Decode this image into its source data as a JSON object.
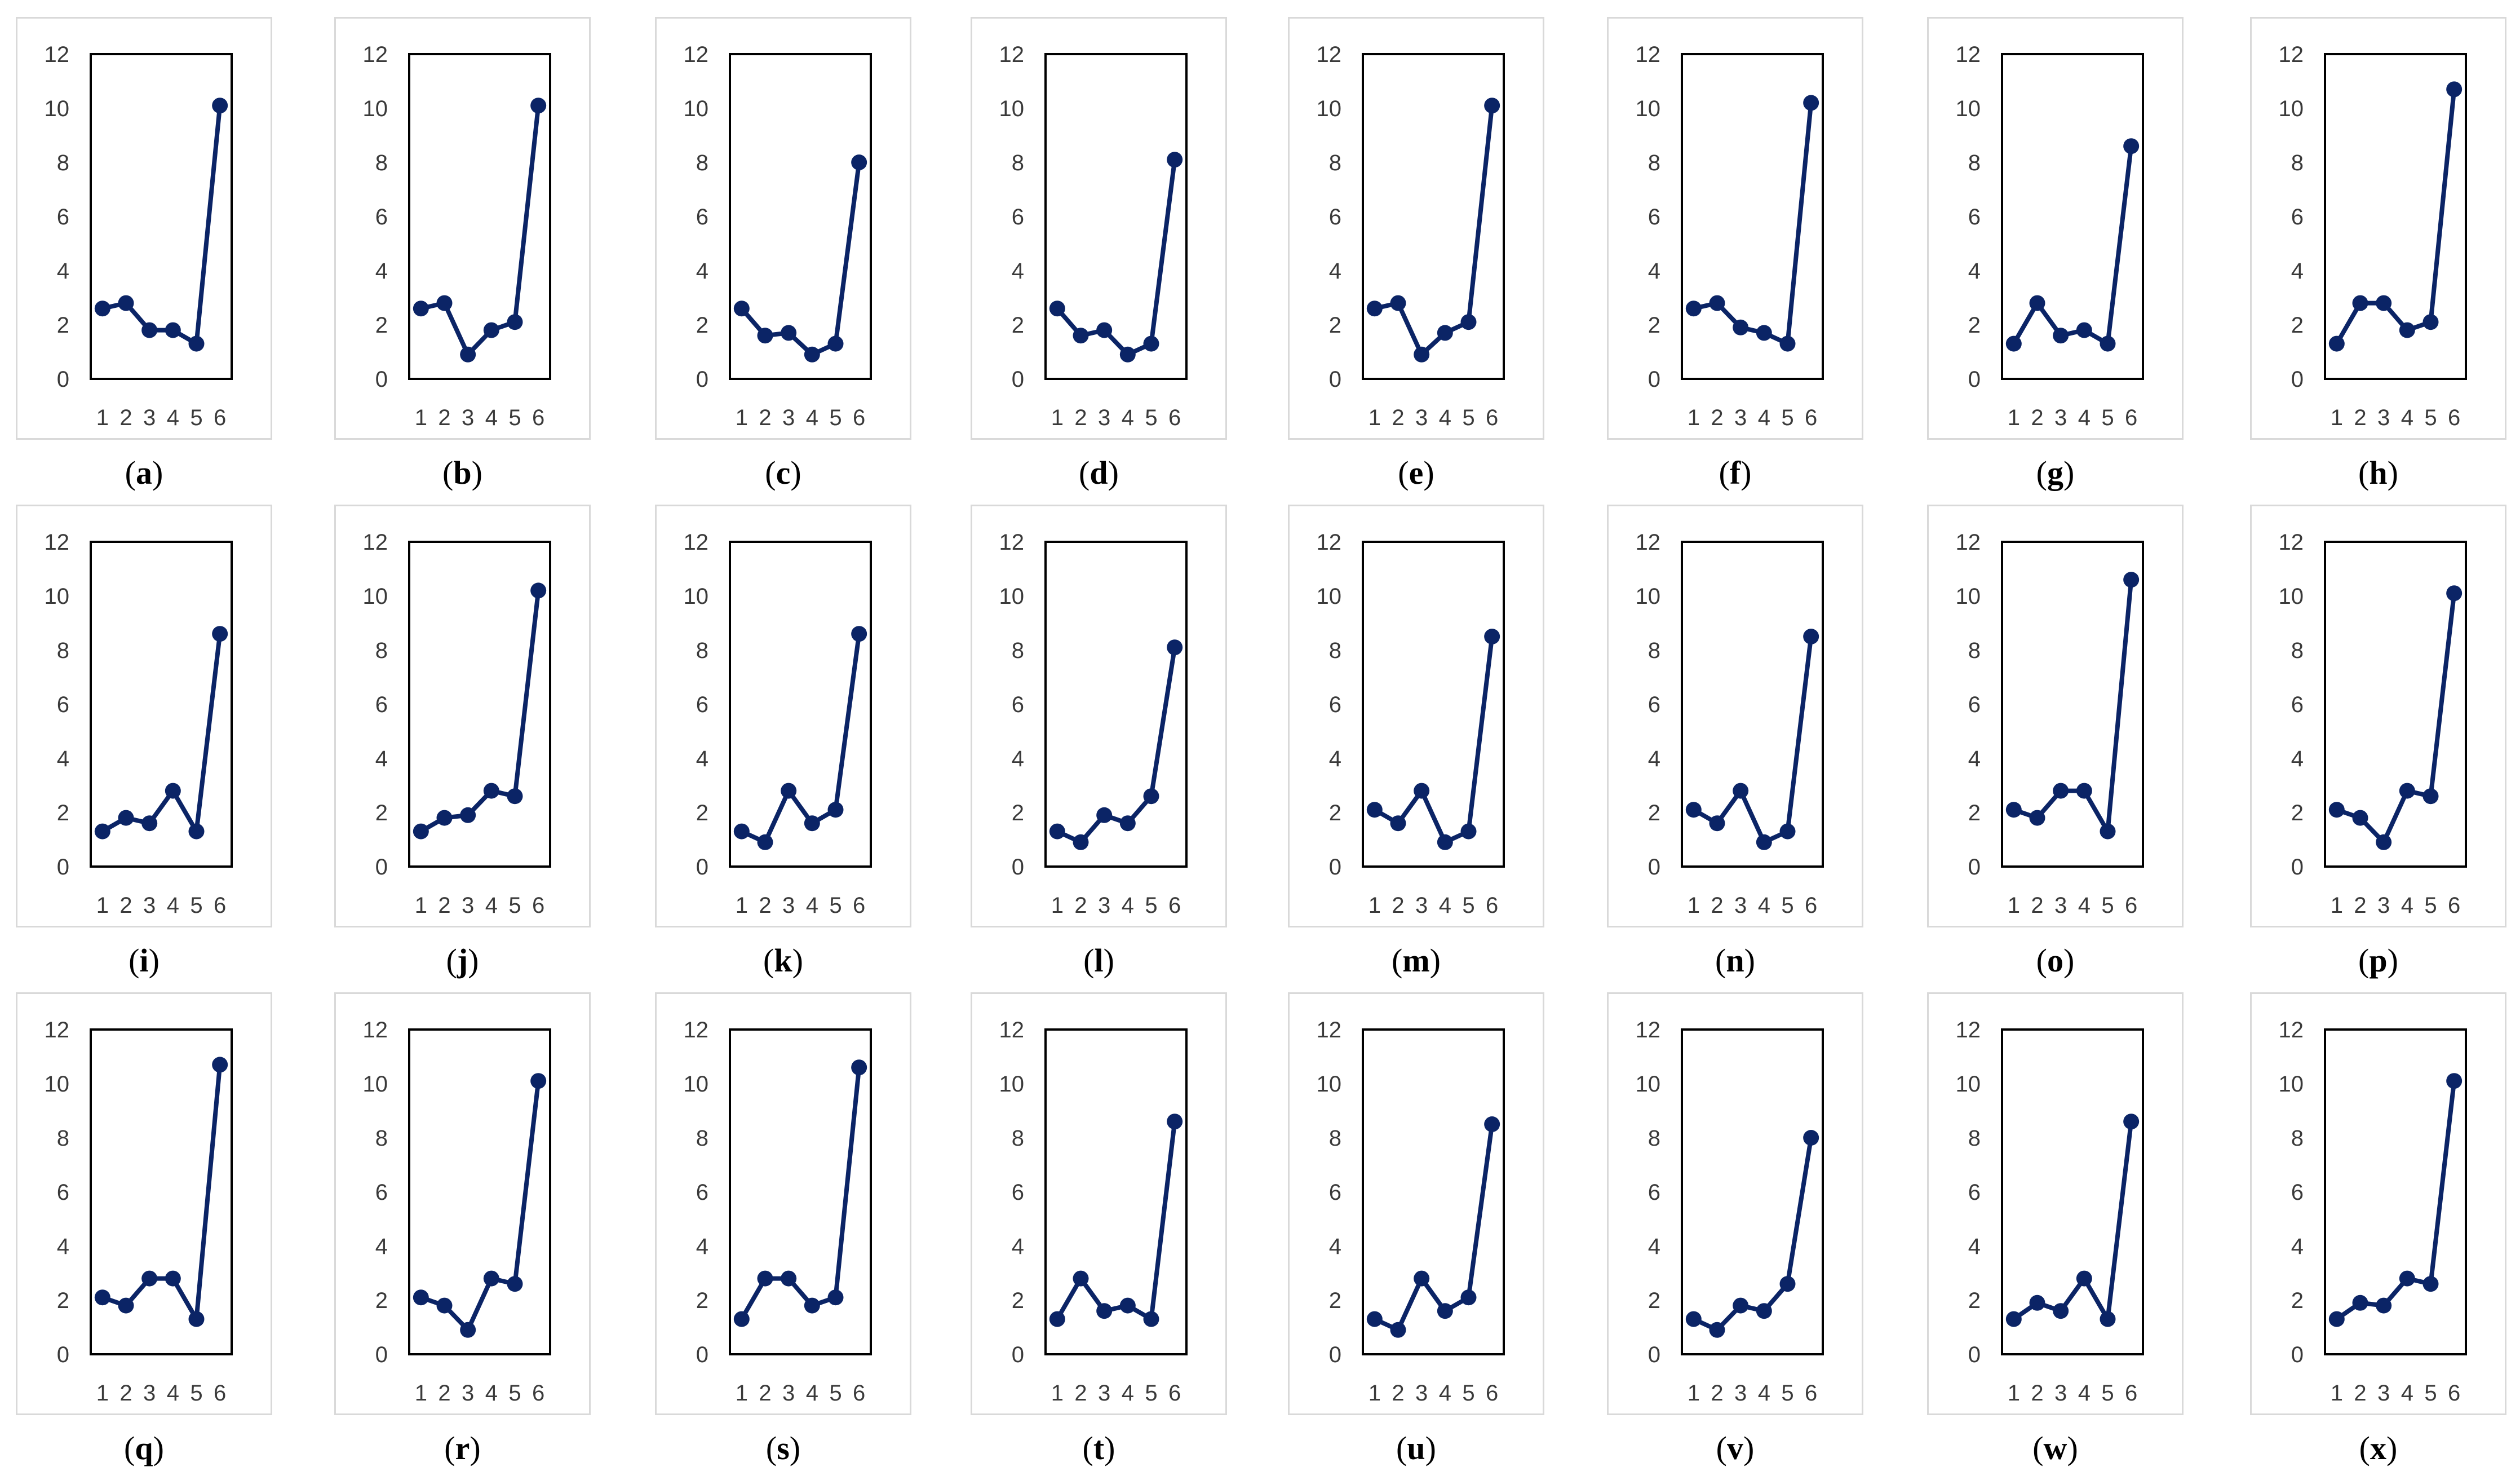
{
  "figure": {
    "style": {
      "line_color": "#0b2466",
      "frame_color": "#000000",
      "card_border": "#d9d9d9",
      "text_color": "#3a3a3a"
    }
  },
  "chart_data": [
    {
      "label": "a",
      "type": "line",
      "x": [
        1,
        2,
        3,
        4,
        5,
        6
      ],
      "values": [
        2.6,
        2.8,
        1.8,
        1.8,
        1.3,
        10.1
      ],
      "ylim": [
        0,
        12
      ],
      "yticks": [
        "0",
        "2",
        "4",
        "6",
        "8",
        "10",
        "12"
      ],
      "xticks": [
        "1",
        "2",
        "3",
        "4",
        "5",
        "6"
      ]
    },
    {
      "label": "b",
      "type": "line",
      "x": [
        1,
        2,
        3,
        4,
        5,
        6
      ],
      "values": [
        2.6,
        2.8,
        0.9,
        1.8,
        2.1,
        10.1
      ],
      "ylim": [
        0,
        12
      ],
      "yticks": [
        "0",
        "2",
        "4",
        "6",
        "8",
        "10",
        "12"
      ],
      "xticks": [
        "1",
        "2",
        "3",
        "4",
        "5",
        "6"
      ]
    },
    {
      "label": "c",
      "type": "line",
      "x": [
        1,
        2,
        3,
        4,
        5,
        6
      ],
      "values": [
        2.6,
        1.6,
        1.7,
        0.9,
        1.3,
        8.0
      ],
      "ylim": [
        0,
        12
      ],
      "yticks": [
        "0",
        "2",
        "4",
        "6",
        "8",
        "10",
        "12"
      ],
      "xticks": [
        "1",
        "2",
        "3",
        "4",
        "5",
        "6"
      ]
    },
    {
      "label": "d",
      "type": "line",
      "x": [
        1,
        2,
        3,
        4,
        5,
        6
      ],
      "values": [
        2.6,
        1.6,
        1.8,
        0.9,
        1.3,
        8.1
      ],
      "ylim": [
        0,
        12
      ],
      "yticks": [
        "0",
        "2",
        "4",
        "6",
        "8",
        "10",
        "12"
      ],
      "xticks": [
        "1",
        "2",
        "3",
        "4",
        "5",
        "6"
      ]
    },
    {
      "label": "e",
      "type": "line",
      "x": [
        1,
        2,
        3,
        4,
        5,
        6
      ],
      "values": [
        2.6,
        2.8,
        0.9,
        1.7,
        2.1,
        10.1
      ],
      "ylim": [
        0,
        12
      ],
      "yticks": [
        "0",
        "2",
        "4",
        "6",
        "8",
        "10",
        "12"
      ],
      "xticks": [
        "1",
        "2",
        "3",
        "4",
        "5",
        "6"
      ]
    },
    {
      "label": "f",
      "type": "line",
      "x": [
        1,
        2,
        3,
        4,
        5,
        6
      ],
      "values": [
        2.6,
        2.8,
        1.9,
        1.7,
        1.3,
        10.2
      ],
      "ylim": [
        0,
        12
      ],
      "yticks": [
        "0",
        "2",
        "4",
        "6",
        "8",
        "10",
        "12"
      ],
      "xticks": [
        "1",
        "2",
        "3",
        "4",
        "5",
        "6"
      ]
    },
    {
      "label": "g",
      "type": "line",
      "x": [
        1,
        2,
        3,
        4,
        5,
        6
      ],
      "values": [
        1.3,
        2.8,
        1.6,
        1.8,
        1.3,
        8.6
      ],
      "ylim": [
        0,
        12
      ],
      "yticks": [
        "0",
        "2",
        "4",
        "6",
        "8",
        "10",
        "12"
      ],
      "xticks": [
        "1",
        "2",
        "3",
        "4",
        "5",
        "6"
      ]
    },
    {
      "label": "h",
      "type": "line",
      "x": [
        1,
        2,
        3,
        4,
        5,
        6
      ],
      "values": [
        1.3,
        2.8,
        2.8,
        1.8,
        2.1,
        10.7
      ],
      "ylim": [
        0,
        12
      ],
      "yticks": [
        "0",
        "2",
        "4",
        "6",
        "8",
        "10",
        "12"
      ],
      "xticks": [
        "1",
        "2",
        "3",
        "4",
        "5",
        "6"
      ]
    },
    {
      "label": "i",
      "type": "line",
      "x": [
        1,
        2,
        3,
        4,
        5,
        6
      ],
      "values": [
        1.3,
        1.8,
        1.6,
        2.8,
        1.3,
        8.6
      ],
      "ylim": [
        0,
        12
      ],
      "yticks": [
        "0",
        "2",
        "4",
        "6",
        "8",
        "10",
        "12"
      ],
      "xticks": [
        "1",
        "2",
        "3",
        "4",
        "5",
        "6"
      ]
    },
    {
      "label": "j",
      "type": "line",
      "x": [
        1,
        2,
        3,
        4,
        5,
        6
      ],
      "values": [
        1.3,
        1.8,
        1.9,
        2.8,
        2.6,
        10.2
      ],
      "ylim": [
        0,
        12
      ],
      "yticks": [
        "0",
        "2",
        "4",
        "6",
        "8",
        "10",
        "12"
      ],
      "xticks": [
        "1",
        "2",
        "3",
        "4",
        "5",
        "6"
      ]
    },
    {
      "label": "k",
      "type": "line",
      "x": [
        1,
        2,
        3,
        4,
        5,
        6
      ],
      "values": [
        1.3,
        0.9,
        2.8,
        1.6,
        2.1,
        8.6
      ],
      "ylim": [
        0,
        12
      ],
      "yticks": [
        "0",
        "2",
        "4",
        "6",
        "8",
        "10",
        "12"
      ],
      "xticks": [
        "1",
        "2",
        "3",
        "4",
        "5",
        "6"
      ]
    },
    {
      "label": "l",
      "type": "line",
      "x": [
        1,
        2,
        3,
        4,
        5,
        6
      ],
      "values": [
        1.3,
        0.9,
        1.9,
        1.6,
        2.6,
        8.1
      ],
      "ylim": [
        0,
        12
      ],
      "yticks": [
        "0",
        "2",
        "4",
        "6",
        "8",
        "10",
        "12"
      ],
      "xticks": [
        "1",
        "2",
        "3",
        "4",
        "5",
        "6"
      ]
    },
    {
      "label": "m",
      "type": "line",
      "x": [
        1,
        2,
        3,
        4,
        5,
        6
      ],
      "values": [
        2.1,
        1.6,
        2.8,
        0.9,
        1.3,
        8.5
      ],
      "ylim": [
        0,
        12
      ],
      "yticks": [
        "0",
        "2",
        "4",
        "6",
        "8",
        "10",
        "12"
      ],
      "xticks": [
        "1",
        "2",
        "3",
        "4",
        "5",
        "6"
      ]
    },
    {
      "label": "n",
      "type": "line",
      "x": [
        1,
        2,
        3,
        4,
        5,
        6
      ],
      "values": [
        2.1,
        1.6,
        2.8,
        0.9,
        1.3,
        8.5
      ],
      "ylim": [
        0,
        12
      ],
      "yticks": [
        "0",
        "2",
        "4",
        "6",
        "8",
        "10",
        "12"
      ],
      "xticks": [
        "1",
        "2",
        "3",
        "4",
        "5",
        "6"
      ]
    },
    {
      "label": "o",
      "type": "line",
      "x": [
        1,
        2,
        3,
        4,
        5,
        6
      ],
      "values": [
        2.1,
        1.8,
        2.8,
        2.8,
        1.3,
        10.6
      ],
      "ylim": [
        0,
        12
      ],
      "yticks": [
        "0",
        "2",
        "4",
        "6",
        "8",
        "10",
        "12"
      ],
      "xticks": [
        "1",
        "2",
        "3",
        "4",
        "5",
        "6"
      ]
    },
    {
      "label": "p",
      "type": "line",
      "x": [
        1,
        2,
        3,
        4,
        5,
        6
      ],
      "values": [
        2.1,
        1.8,
        0.9,
        2.8,
        2.6,
        10.1
      ],
      "ylim": [
        0,
        12
      ],
      "yticks": [
        "0",
        "2",
        "4",
        "6",
        "8",
        "10",
        "12"
      ],
      "xticks": [
        "1",
        "2",
        "3",
        "4",
        "5",
        "6"
      ]
    },
    {
      "label": "q",
      "type": "line",
      "x": [
        1,
        2,
        3,
        4,
        5,
        6
      ],
      "values": [
        2.1,
        1.8,
        2.8,
        2.8,
        1.3,
        10.7
      ],
      "ylim": [
        0,
        12
      ],
      "yticks": [
        "0",
        "2",
        "4",
        "6",
        "8",
        "10",
        "12"
      ],
      "xticks": [
        "1",
        "2",
        "3",
        "4",
        "5",
        "6"
      ]
    },
    {
      "label": "r",
      "type": "line",
      "x": [
        1,
        2,
        3,
        4,
        5,
        6
      ],
      "values": [
        2.1,
        1.8,
        0.9,
        2.8,
        2.6,
        10.1
      ],
      "ylim": [
        0,
        12
      ],
      "yticks": [
        "0",
        "2",
        "4",
        "6",
        "8",
        "10",
        "12"
      ],
      "xticks": [
        "1",
        "2",
        "3",
        "4",
        "5",
        "6"
      ]
    },
    {
      "label": "s",
      "type": "line",
      "x": [
        1,
        2,
        3,
        4,
        5,
        6
      ],
      "values": [
        1.3,
        2.8,
        2.8,
        1.8,
        2.1,
        10.6
      ],
      "ylim": [
        0,
        12
      ],
      "yticks": [
        "0",
        "2",
        "4",
        "6",
        "8",
        "10",
        "12"
      ],
      "xticks": [
        "1",
        "2",
        "3",
        "4",
        "5",
        "6"
      ]
    },
    {
      "label": "t",
      "type": "line",
      "x": [
        1,
        2,
        3,
        4,
        5,
        6
      ],
      "values": [
        1.3,
        2.8,
        1.6,
        1.8,
        1.3,
        8.6
      ],
      "ylim": [
        0,
        12
      ],
      "yticks": [
        "0",
        "2",
        "4",
        "6",
        "8",
        "10",
        "12"
      ],
      "xticks": [
        "1",
        "2",
        "3",
        "4",
        "5",
        "6"
      ]
    },
    {
      "label": "u",
      "type": "line",
      "x": [
        1,
        2,
        3,
        4,
        5,
        6
      ],
      "values": [
        1.3,
        0.9,
        2.8,
        1.6,
        2.1,
        8.5
      ],
      "ylim": [
        0,
        12
      ],
      "yticks": [
        "0",
        "2",
        "4",
        "6",
        "8",
        "10",
        "12"
      ],
      "xticks": [
        "1",
        "2",
        "3",
        "4",
        "5",
        "6"
      ]
    },
    {
      "label": "v",
      "type": "line",
      "x": [
        1,
        2,
        3,
        4,
        5,
        6
      ],
      "values": [
        1.3,
        0.9,
        1.8,
        1.6,
        2.6,
        8.0
      ],
      "ylim": [
        0,
        12
      ],
      "yticks": [
        "0",
        "2",
        "4",
        "6",
        "8",
        "10",
        "12"
      ],
      "xticks": [
        "1",
        "2",
        "3",
        "4",
        "5",
        "6"
      ]
    },
    {
      "label": "w",
      "type": "line",
      "x": [
        1,
        2,
        3,
        4,
        5,
        6
      ],
      "values": [
        1.3,
        1.9,
        1.6,
        2.8,
        1.3,
        8.6
      ],
      "ylim": [
        0,
        12
      ],
      "yticks": [
        "0",
        "2",
        "4",
        "6",
        "8",
        "10",
        "12"
      ],
      "xticks": [
        "1",
        "2",
        "3",
        "4",
        "5",
        "6"
      ]
    },
    {
      "label": "x",
      "type": "line",
      "x": [
        1,
        2,
        3,
        4,
        5,
        6
      ],
      "values": [
        1.3,
        1.9,
        1.8,
        2.8,
        2.6,
        10.1
      ],
      "ylim": [
        0,
        12
      ],
      "yticks": [
        "0",
        "2",
        "4",
        "6",
        "8",
        "10",
        "12"
      ],
      "xticks": [
        "1",
        "2",
        "3",
        "4",
        "5",
        "6"
      ]
    }
  ]
}
